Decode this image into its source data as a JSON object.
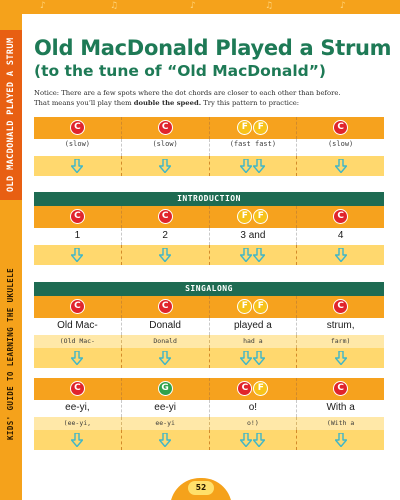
{
  "side": {
    "section_title": "OLD MACDONALD PLAYED A STRUM",
    "book_title": "KIDS' GUIDE TO LEARNING THE UKULELE"
  },
  "title": "Old MacDonald Played a Strum",
  "subtitle": "(to the tune of “Old MacDonald”)",
  "intro": {
    "line1": "Notice: There are a few spots where the dot chords are closer to each other than before.",
    "line2_start": "That means you’ll play them ",
    "line2_bold": "double the speed.",
    "line2_end": " Try this pattern to practice:"
  },
  "practice": {
    "cells": [
      {
        "chords": [
          "C"
        ],
        "label": "(slow)",
        "arrows": 1
      },
      {
        "chords": [
          "C"
        ],
        "label": "(slow)",
        "arrows": 1
      },
      {
        "chords": [
          "F",
          "F"
        ],
        "label": "(fast fast)",
        "arrows": 2
      },
      {
        "chords": [
          "C"
        ],
        "label": "(slow)",
        "arrows": 1
      }
    ]
  },
  "introduction": {
    "header": "INTRODUCTION",
    "cells": [
      {
        "chords": [
          "C"
        ],
        "lyric": "1",
        "arrows": 1
      },
      {
        "chords": [
          "C"
        ],
        "lyric": "2",
        "arrows": 1
      },
      {
        "chords": [
          "F",
          "F"
        ],
        "lyric": "3 and",
        "arrows": 2
      },
      {
        "chords": [
          "C"
        ],
        "lyric": "4",
        "arrows": 1
      }
    ]
  },
  "singalong": {
    "header": "SINGALONG",
    "rows": [
      [
        {
          "chords": [
            "C"
          ],
          "lyric": "Old Mac-",
          "paren": "(Old Mac-",
          "arrows": 1
        },
        {
          "chords": [
            "C"
          ],
          "lyric": "Donald",
          "paren": "Donald",
          "arrows": 1
        },
        {
          "chords": [
            "F",
            "F"
          ],
          "lyric": "played a",
          "paren": "had a",
          "arrows": 2
        },
        {
          "chords": [
            "C"
          ],
          "lyric": "strum,",
          "paren": "farm)",
          "arrows": 1
        }
      ],
      [
        {
          "chords": [
            "C"
          ],
          "lyric": "ee-yi,",
          "paren": "(ee-yi,",
          "arrows": 1
        },
        {
          "chords": [
            "G"
          ],
          "lyric": "ee-yi",
          "paren": "ee-yi",
          "arrows": 1
        },
        {
          "chords": [
            "C",
            "F"
          ],
          "lyric": "o!",
          "paren": "o!)",
          "arrows": 2
        },
        {
          "chords": [
            "C"
          ],
          "lyric": "With a",
          "paren": "(With a",
          "arrows": 1
        }
      ]
    ]
  },
  "page_number": "52",
  "colors": {
    "orange": "#f5a21b",
    "green": "#1e6b52",
    "chord_c": "#e0242c",
    "chord_f": "#f7c21a",
    "chord_g": "#30a24c",
    "arrow": "#3fb6c8"
  }
}
